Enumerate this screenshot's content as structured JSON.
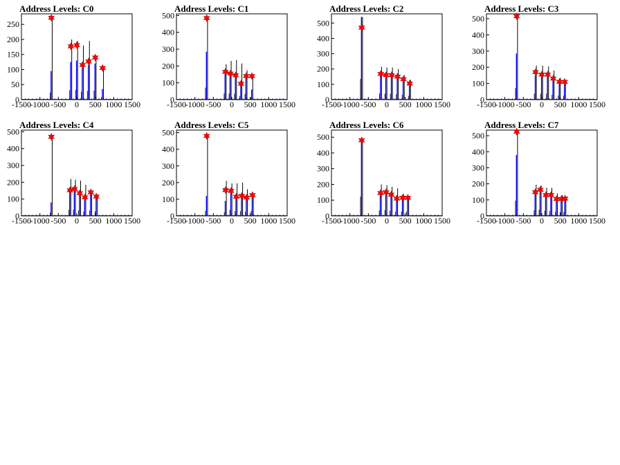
{
  "figure": {
    "background": "#ffffff",
    "colors": {
      "histogram": "#0000ff",
      "spike": "#000000",
      "marker": "#ff0000",
      "marker_edge": "#800000"
    }
  },
  "chart_data": [
    {
      "type": "bar",
      "title": "Address Levels: C0",
      "xlabel": "",
      "ylabel": "",
      "xlim": [
        -1500,
        1500
      ],
      "ylim": [
        0,
        285
      ],
      "xticks": [
        "-1500",
        "-1000",
        "-500",
        "0",
        "500",
        "1000",
        "1500"
      ],
      "yticks": [
        "0",
        "50",
        "100",
        "150",
        "200",
        "250"
      ],
      "peaks": [
        {
          "x": -690,
          "y": 272,
          "tall": 272,
          "blue": 95
        },
        {
          "x": -160,
          "y": 177,
          "tall": 200,
          "blue": 125
        },
        {
          "x": 0,
          "y": 181,
          "tall": 195,
          "blue": 130
        },
        {
          "x": 155,
          "y": 115,
          "tall": 180,
          "blue": 105
        },
        {
          "x": 320,
          "y": 127,
          "tall": 195,
          "blue": 115
        },
        {
          "x": 500,
          "y": 140,
          "tall": 145,
          "blue": 120
        },
        {
          "x": 700,
          "y": 105,
          "tall": 110,
          "blue": 35
        }
      ]
    },
    {
      "type": "bar",
      "title": "Address Levels: C1",
      "xlabel": "",
      "ylabel": "",
      "xlim": [
        -1500,
        1500
      ],
      "ylim": [
        0,
        510
      ],
      "xticks": [
        "-1500",
        "-1000",
        "-500",
        "0",
        "500",
        "1000",
        "1500"
      ],
      "yticks": [
        "0",
        "100",
        "200",
        "300",
        "400",
        "500"
      ],
      "peaks": [
        {
          "x": -680,
          "y": 485,
          "tall": 490,
          "blue": 285
        },
        {
          "x": -175,
          "y": 165,
          "tall": 210,
          "blue": 150
        },
        {
          "x": -40,
          "y": 155,
          "tall": 230,
          "blue": 145
        },
        {
          "x": 105,
          "y": 145,
          "tall": 235,
          "blue": 140
        },
        {
          "x": 250,
          "y": 95,
          "tall": 215,
          "blue": 90
        },
        {
          "x": 390,
          "y": 140,
          "tall": 175,
          "blue": 135
        },
        {
          "x": 545,
          "y": 140,
          "tall": 150,
          "blue": 60
        }
      ]
    },
    {
      "type": "bar",
      "title": "Address Levels: C2",
      "xlabel": "",
      "ylabel": "",
      "xlim": [
        -1500,
        1500
      ],
      "ylim": [
        0,
        560
      ],
      "xticks": [
        "-1500",
        "-1000",
        "-500",
        "0",
        "500",
        "1000",
        "1500"
      ],
      "yticks": [
        "0",
        "100",
        "200",
        "300",
        "400",
        "500"
      ],
      "peaks": [
        {
          "x": -680,
          "y": 470,
          "tall": 540,
          "blue": 540
        },
        {
          "x": -165,
          "y": 168,
          "tall": 215,
          "blue": 160
        },
        {
          "x": -20,
          "y": 160,
          "tall": 210,
          "blue": 155
        },
        {
          "x": 130,
          "y": 160,
          "tall": 210,
          "blue": 150
        },
        {
          "x": 290,
          "y": 150,
          "tall": 200,
          "blue": 140
        },
        {
          "x": 450,
          "y": 133,
          "tall": 160,
          "blue": 125
        },
        {
          "x": 620,
          "y": 105,
          "tall": 130,
          "blue": 100
        }
      ]
    },
    {
      "type": "bar",
      "title": "Address Levels: C3",
      "xlabel": "",
      "ylabel": "",
      "xlim": [
        -1500,
        1500
      ],
      "ylim": [
        0,
        530
      ],
      "xticks": [
        "-1500",
        "-1000",
        "-500",
        "0",
        "500",
        "1000",
        "1500"
      ],
      "yticks": [
        "0",
        "100",
        "200",
        "300",
        "400",
        "500"
      ],
      "peaks": [
        {
          "x": -680,
          "y": 515,
          "tall": 520,
          "blue": 285
        },
        {
          "x": -170,
          "y": 170,
          "tall": 210,
          "blue": 150
        },
        {
          "x": 0,
          "y": 155,
          "tall": 210,
          "blue": 145
        },
        {
          "x": 160,
          "y": 155,
          "tall": 205,
          "blue": 145
        },
        {
          "x": 310,
          "y": 130,
          "tall": 180,
          "blue": 120
        },
        {
          "x": 480,
          "y": 110,
          "tall": 135,
          "blue": 100
        },
        {
          "x": 620,
          "y": 110,
          "tall": 120,
          "blue": 100
        }
      ]
    },
    {
      "type": "bar",
      "title": "Address Levels: C4",
      "xlabel": "",
      "ylabel": "",
      "xlim": [
        -1500,
        1500
      ],
      "ylim": [
        0,
        510
      ],
      "xticks": [
        "-1500",
        "-1000",
        "-500",
        "0",
        "500",
        "1000",
        "1500"
      ],
      "yticks": [
        "0",
        "100",
        "200",
        "300",
        "400",
        "500"
      ],
      "peaks": [
        {
          "x": -690,
          "y": 470,
          "tall": 480,
          "blue": 80
        },
        {
          "x": -185,
          "y": 152,
          "tall": 220,
          "blue": 145
        },
        {
          "x": -60,
          "y": 160,
          "tall": 215,
          "blue": 150
        },
        {
          "x": 80,
          "y": 135,
          "tall": 210,
          "blue": 130
        },
        {
          "x": 220,
          "y": 110,
          "tall": 185,
          "blue": 105
        },
        {
          "x": 380,
          "y": 140,
          "tall": 150,
          "blue": 130
        },
        {
          "x": 530,
          "y": 115,
          "tall": 125,
          "blue": 110
        }
      ]
    },
    {
      "type": "bar",
      "title": "Address Levels: C5",
      "xlabel": "",
      "ylabel": "",
      "xlim": [
        -1500,
        1500
      ],
      "ylim": [
        0,
        515
      ],
      "xticks": [
        "-1500",
        "-1000",
        "-500",
        "0",
        "500",
        "1000",
        "1500"
      ],
      "yticks": [
        "0",
        "100",
        "200",
        "300",
        "400",
        "500"
      ],
      "peaks": [
        {
          "x": -680,
          "y": 480,
          "tall": 490,
          "blue": 120
        },
        {
          "x": -170,
          "y": 155,
          "tall": 210,
          "blue": 90
        },
        {
          "x": -20,
          "y": 150,
          "tall": 195,
          "blue": 145
        },
        {
          "x": 120,
          "y": 115,
          "tall": 195,
          "blue": 110
        },
        {
          "x": 270,
          "y": 120,
          "tall": 200,
          "blue": 115
        },
        {
          "x": 400,
          "y": 110,
          "tall": 160,
          "blue": 100
        },
        {
          "x": 560,
          "y": 125,
          "tall": 130,
          "blue": 120
        }
      ]
    },
    {
      "type": "bar",
      "title": "Address Levels: C6",
      "xlabel": "",
      "ylabel": "",
      "xlim": [
        -1500,
        1500
      ],
      "ylim": [
        0,
        545
      ],
      "xticks": [
        "-1500",
        "-1000",
        "-500",
        "0",
        "500",
        "1000",
        "1500"
      ],
      "yticks": [
        "0",
        "100",
        "200",
        "300",
        "400",
        "500"
      ],
      "peaks": [
        {
          "x": -680,
          "y": 480,
          "tall": 490,
          "blue": 490
        },
        {
          "x": -170,
          "y": 145,
          "tall": 200,
          "blue": 140
        },
        {
          "x": -20,
          "y": 150,
          "tall": 195,
          "blue": 145
        },
        {
          "x": 120,
          "y": 135,
          "tall": 185,
          "blue": 130
        },
        {
          "x": 270,
          "y": 110,
          "tall": 175,
          "blue": 105
        },
        {
          "x": 430,
          "y": 115,
          "tall": 140,
          "blue": 110
        },
        {
          "x": 570,
          "y": 115,
          "tall": 125,
          "blue": 110
        }
      ]
    },
    {
      "type": "bar",
      "title": "Address Levels: C7",
      "xlabel": "",
      "ylabel": "",
      "xlim": [
        -1500,
        1500
      ],
      "ylim": [
        0,
        535
      ],
      "xticks": [
        "-1500",
        "-1000",
        "-500",
        "0",
        "500",
        "1000",
        "1500"
      ],
      "yticks": [
        "0",
        "100",
        "200",
        "300",
        "400",
        "500"
      ],
      "peaks": [
        {
          "x": -680,
          "y": 525,
          "tall": 530,
          "blue": 380
        },
        {
          "x": -175,
          "y": 148,
          "tall": 195,
          "blue": 140
        },
        {
          "x": -40,
          "y": 163,
          "tall": 190,
          "blue": 155
        },
        {
          "x": 110,
          "y": 130,
          "tall": 175,
          "blue": 125
        },
        {
          "x": 250,
          "y": 130,
          "tall": 175,
          "blue": 125
        },
        {
          "x": 400,
          "y": 105,
          "tall": 140,
          "blue": 100
        },
        {
          "x": 530,
          "y": 105,
          "tall": 130,
          "blue": 100
        },
        {
          "x": 630,
          "y": 108,
          "tall": 120,
          "blue": 100
        }
      ]
    }
  ]
}
